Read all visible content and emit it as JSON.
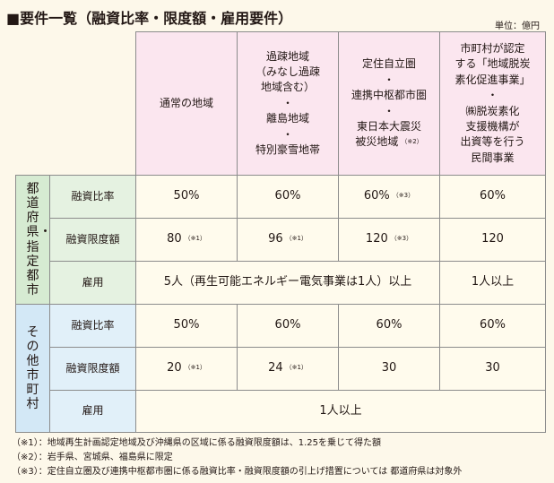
{
  "title": "■要件一覧（融資比率・限度額・雇用要件）",
  "unit": "単位：億円",
  "columns": [
    {
      "lines": [
        "通常の地域"
      ]
    },
    {
      "lines": [
        "過疎地域",
        "（みなし過疎",
        "地域含む）",
        "・",
        "離島地域",
        "・",
        "特別豪雪地帯"
      ]
    },
    {
      "lines": [
        "定住自立圏",
        "・",
        "連携中枢都市圏",
        "・",
        "東日本大震災",
        "被災地域"
      ],
      "note": "（※2）"
    },
    {
      "lines": [
        "市町村が認定",
        "する「地域脱炭",
        "素化促進事業」",
        "・",
        "㈱脱炭素化",
        "支援機構が",
        "出資等を行う",
        "民間事業"
      ]
    }
  ],
  "groups": [
    {
      "label": "都道府県・指定都市",
      "rows": [
        {
          "label": "融資比率",
          "cells": [
            {
              "value": "50%"
            },
            {
              "value": "60%"
            },
            {
              "value": "60%",
              "note": "（※3）"
            },
            {
              "value": "60%"
            }
          ]
        },
        {
          "label": "融資限度額",
          "cells": [
            {
              "value": "80",
              "note": "（※1）"
            },
            {
              "value": "96",
              "note": "（※1）"
            },
            {
              "value": "120",
              "note": "（※3）"
            },
            {
              "value": "120"
            }
          ]
        },
        {
          "label": "雇用",
          "merged": "5人（再生可能エネルギー電気事業は1人）以上",
          "last": "1人以上"
        }
      ]
    },
    {
      "label": "その他市町村",
      "rows": [
        {
          "label": "融資比率",
          "cells": [
            {
              "value": "50%"
            },
            {
              "value": "60%"
            },
            {
              "value": "60%"
            },
            {
              "value": "60%"
            }
          ]
        },
        {
          "label": "融資限度額",
          "cells": [
            {
              "value": "20",
              "note": "（※1）"
            },
            {
              "value": "24",
              "note": "（※1）"
            },
            {
              "value": "30"
            },
            {
              "value": "30"
            }
          ]
        },
        {
          "label": "雇用",
          "merged": "1人以上"
        }
      ]
    }
  ],
  "notes": [
    "（※1）：地域再生計画認定地域及び沖縄県の区域に係る融資限度額は、1.25を乗じて得た額",
    "（※2）：岩手県、宮城県、福島県に限定",
    "（※3）：定住自立圏及び連携中枢都市圏に係る融資比率・融資限度額の引上げ措置については 都道府県は対象外"
  ],
  "colors": {
    "background": "#fdf8ea",
    "header": "#fbe6ef",
    "group_city": "#d6ebd2",
    "group_other": "#d3e8f6",
    "cell": "#fffbed",
    "border": "#8c8c8c"
  }
}
